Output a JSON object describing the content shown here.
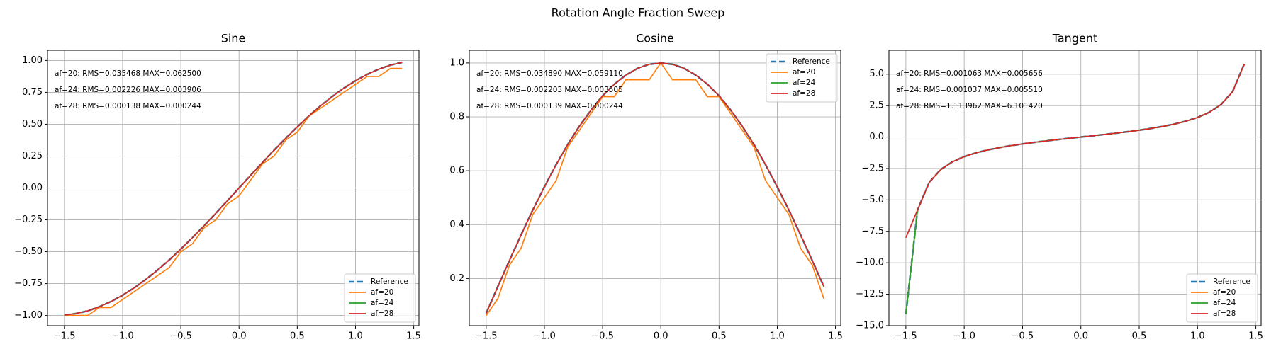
{
  "title": "Rotation Angle Fraction Sweep",
  "chart_data": [
    {
      "type": "line",
      "title": "Sine",
      "grid": true,
      "legend": "lower right",
      "annotations": [
        "af=20: RMS=0.035468 MAX=0.062500",
        "af=24: RMS=0.002226 MAX=0.003906",
        "af=28: RMS=0.000138 MAX=0.000244"
      ],
      "x": [
        -1.5,
        -1.4,
        -1.3,
        -1.2,
        -1.1,
        -1.0,
        -0.9,
        -0.8,
        -0.7,
        -0.6,
        -0.5,
        -0.4,
        -0.3,
        -0.2,
        -0.1,
        0,
        0.1,
        0.2,
        0.3,
        0.4,
        0.5,
        0.6,
        0.7,
        0.8,
        0.9,
        1.0,
        1.1,
        1.2,
        1.3,
        1.4
      ],
      "xlim": [
        -1.645,
        1.545
      ],
      "xticks": [
        {
          "value": -1.5,
          "label": "−1.5"
        },
        {
          "value": -1.0,
          "label": "−1.0"
        },
        {
          "value": -0.5,
          "label": "−0.5"
        },
        {
          "value": 0,
          "label": "0.0"
        },
        0.5,
        {
          "value": 1.0,
          "label": "1.0"
        },
        1.5
      ],
      "ylim": [
        -1.08,
        1.08
      ],
      "yticks": [
        {
          "value": -1.0,
          "label": "−1.00"
        },
        {
          "value": -0.75,
          "label": "−0.75"
        },
        {
          "value": -0.5,
          "label": "−0.50"
        },
        {
          "value": -0.25,
          "label": "−0.25"
        },
        {
          "value": 0,
          "label": "0.00"
        },
        0.25,
        {
          "value": 0.5,
          "label": "0.50"
        },
        0.75,
        {
          "value": 1.0,
          "label": "1.00"
        }
      ],
      "series": [
        {
          "name": "Reference",
          "color": "#1f77b4",
          "linestyle": "dashed",
          "values": [
            -0.997,
            -0.985,
            -0.964,
            -0.932,
            -0.891,
            -0.841,
            -0.783,
            -0.717,
            -0.644,
            -0.565,
            -0.479,
            -0.389,
            -0.296,
            -0.199,
            -0.1,
            0,
            0.1,
            0.199,
            0.296,
            0.389,
            0.479,
            0.565,
            0.644,
            0.717,
            0.783,
            0.841,
            0.891,
            0.932,
            0.964,
            0.985
          ]
        },
        {
          "name": "af=20",
          "color": "#ff7f0e",
          "linestyle": "solid",
          "values": [
            -1,
            -1,
            -1,
            -0.9375,
            -0.9375,
            -0.875,
            -0.8125,
            -0.75,
            -0.6875,
            -0.625,
            -0.5,
            -0.4375,
            -0.3125,
            -0.25,
            -0.125,
            -0.0625,
            0.0625,
            0.1875,
            0.25,
            0.375,
            0.4375,
            0.5625,
            0.625,
            0.6875,
            0.75,
            0.8125,
            0.875,
            0.875,
            0.9375,
            0.9375
          ]
        },
        {
          "name": "af=24",
          "color": "#2ca02c",
          "linestyle": "solid",
          "values": [
            -0.997,
            -0.985,
            -0.964,
            -0.932,
            -0.891,
            -0.841,
            -0.783,
            -0.717,
            -0.644,
            -0.565,
            -0.479,
            -0.389,
            -0.296,
            -0.199,
            -0.1,
            0,
            0.1,
            0.199,
            0.296,
            0.389,
            0.479,
            0.565,
            0.644,
            0.717,
            0.783,
            0.841,
            0.891,
            0.932,
            0.964,
            0.985
          ]
        },
        {
          "name": "af=28",
          "color": "#d62728",
          "linestyle": "solid",
          "values": [
            -0.997,
            -0.985,
            -0.964,
            -0.932,
            -0.891,
            -0.841,
            -0.783,
            -0.717,
            -0.644,
            -0.565,
            -0.479,
            -0.389,
            -0.296,
            -0.199,
            -0.1,
            0,
            0.1,
            0.199,
            0.296,
            0.389,
            0.479,
            0.565,
            0.644,
            0.717,
            0.783,
            0.841,
            0.891,
            0.932,
            0.964,
            0.985
          ]
        }
      ]
    },
    {
      "type": "line",
      "title": "Cosine",
      "grid": true,
      "legend": "upper right",
      "annotations": [
        "af=20: RMS=0.034890 MAX=0.059110",
        "af=24: RMS=0.002203 MAX=0.003505",
        "af=28: RMS=0.000139 MAX=0.000244"
      ],
      "x": [
        -1.5,
        -1.4,
        -1.3,
        -1.2,
        -1.1,
        -1.0,
        -0.9,
        -0.8,
        -0.7,
        -0.6,
        -0.5,
        -0.4,
        -0.3,
        -0.2,
        -0.1,
        0,
        0.1,
        0.2,
        0.3,
        0.4,
        0.5,
        0.6,
        0.7,
        0.8,
        0.9,
        1.0,
        1.1,
        1.2,
        1.3,
        1.4
      ],
      "xlim": [
        -1.645,
        1.545
      ],
      "xticks": [
        {
          "value": -1.5,
          "label": "−1.5"
        },
        {
          "value": -1.0,
          "label": "−1.0"
        },
        {
          "value": -0.5,
          "label": "−0.5"
        },
        {
          "value": 0,
          "label": "0.0"
        },
        0.5,
        {
          "value": 1.0,
          "label": "1.0"
        },
        1.5
      ],
      "ylim": [
        0.025,
        1.047
      ],
      "yticks": [
        0.2,
        0.4,
        0.6,
        0.8,
        {
          "value": 1.0,
          "label": "1.0"
        }
      ],
      "series": [
        {
          "name": "Reference",
          "color": "#1f77b4",
          "linestyle": "dashed",
          "values": [
            0.071,
            0.17,
            0.267,
            0.362,
            0.454,
            0.54,
            0.622,
            0.697,
            0.765,
            0.825,
            0.878,
            0.921,
            0.955,
            0.98,
            0.995,
            1,
            0.995,
            0.98,
            0.955,
            0.921,
            0.878,
            0.825,
            0.765,
            0.697,
            0.622,
            0.54,
            0.454,
            0.362,
            0.267,
            0.17
          ]
        },
        {
          "name": "af=20",
          "color": "#ff7f0e",
          "linestyle": "solid",
          "values": [
            0.0625,
            0.125,
            0.25,
            0.3125,
            0.4375,
            0.5,
            0.5625,
            0.6875,
            0.75,
            0.8125,
            0.875,
            0.875,
            0.9375,
            0.9375,
            0.9375,
            1,
            0.9375,
            0.9375,
            0.9375,
            0.875,
            0.875,
            0.8125,
            0.75,
            0.6875,
            0.5625,
            0.5,
            0.4375,
            0.3125,
            0.25,
            0.125
          ]
        },
        {
          "name": "af=24",
          "color": "#2ca02c",
          "linestyle": "solid",
          "values": [
            0.071,
            0.17,
            0.267,
            0.362,
            0.454,
            0.54,
            0.622,
            0.697,
            0.765,
            0.825,
            0.878,
            0.921,
            0.955,
            0.98,
            0.995,
            1,
            0.995,
            0.98,
            0.955,
            0.921,
            0.878,
            0.825,
            0.765,
            0.697,
            0.622,
            0.54,
            0.454,
            0.362,
            0.267,
            0.17
          ]
        },
        {
          "name": "af=28",
          "color": "#d62728",
          "linestyle": "solid",
          "values": [
            0.071,
            0.17,
            0.267,
            0.362,
            0.454,
            0.54,
            0.622,
            0.697,
            0.765,
            0.825,
            0.878,
            0.921,
            0.955,
            0.98,
            0.995,
            1,
            0.995,
            0.98,
            0.955,
            0.921,
            0.878,
            0.825,
            0.765,
            0.697,
            0.622,
            0.54,
            0.454,
            0.362,
            0.267,
            0.17
          ]
        }
      ]
    },
    {
      "type": "line",
      "title": "Tangent",
      "grid": true,
      "legend": "lower right",
      "annotations": [
        "af=20: RMS=0.001063 MAX=0.005656",
        "af=24: RMS=0.001037 MAX=0.005510",
        "af=28: RMS=1.113962 MAX=6.101420"
      ],
      "x": [
        -1.5,
        -1.4,
        -1.3,
        -1.2,
        -1.1,
        -1.0,
        -0.9,
        -0.8,
        -0.7,
        -0.6,
        -0.5,
        -0.4,
        -0.3,
        -0.2,
        -0.1,
        0,
        0.1,
        0.2,
        0.3,
        0.4,
        0.5,
        0.6,
        0.7,
        0.8,
        0.9,
        1.0,
        1.1,
        1.2,
        1.3,
        1.4
      ],
      "xlim": [
        -1.645,
        1.545
      ],
      "xticks": [
        {
          "value": -1.5,
          "label": "−1.5"
        },
        {
          "value": -1.0,
          "label": "−1.0"
        },
        {
          "value": -0.5,
          "label": "−0.5"
        },
        {
          "value": 0,
          "label": "0.0"
        },
        0.5,
        {
          "value": 1.0,
          "label": "1.0"
        },
        1.5
      ],
      "ylim": [
        -15.0,
        6.9
      ],
      "yticks": [
        {
          "value": -15.0,
          "label": "−15.0"
        },
        {
          "value": -12.5,
          "label": "−12.5"
        },
        {
          "value": -10.0,
          "label": "−10.0"
        },
        {
          "value": -7.5,
          "label": "−7.5"
        },
        {
          "value": -5.0,
          "label": "−5.0"
        },
        {
          "value": -2.5,
          "label": "−2.5"
        },
        {
          "value": 0,
          "label": "0.0"
        },
        2.5,
        {
          "value": 5.0,
          "label": "5.0"
        }
      ],
      "series": [
        {
          "name": "Reference",
          "color": "#1f77b4",
          "linestyle": "dashed",
          "values": [
            -14.101,
            -5.798,
            -3.602,
            -2.572,
            -1.965,
            -1.557,
            -1.26,
            -1.03,
            -0.842,
            -0.684,
            -0.546,
            -0.423,
            -0.309,
            -0.203,
            -0.1,
            0,
            0.1,
            0.203,
            0.309,
            0.423,
            0.546,
            0.684,
            0.842,
            1.03,
            1.26,
            1.557,
            1.965,
            2.572,
            3.602,
            5.798
          ]
        },
        {
          "name": "af=20",
          "color": "#ff7f0e",
          "linestyle": "solid",
          "values": [
            -14.101,
            -5.798,
            -3.602,
            -2.572,
            -1.965,
            -1.557,
            -1.26,
            -1.03,
            -0.842,
            -0.684,
            -0.546,
            -0.423,
            -0.309,
            -0.203,
            -0.1,
            0,
            0.1,
            0.203,
            0.309,
            0.423,
            0.546,
            0.684,
            0.842,
            1.03,
            1.26,
            1.557,
            1.965,
            2.572,
            3.602,
            5.798
          ]
        },
        {
          "name": "af=24",
          "color": "#2ca02c",
          "linestyle": "solid",
          "values": [
            -14.101,
            -5.798,
            -3.602,
            -2.572,
            -1.965,
            -1.557,
            -1.26,
            -1.03,
            -0.842,
            -0.684,
            -0.546,
            -0.423,
            -0.309,
            -0.203,
            -0.1,
            0,
            0.1,
            0.203,
            0.309,
            0.423,
            0.546,
            0.684,
            0.842,
            1.03,
            1.26,
            1.557,
            1.965,
            2.572,
            3.602,
            5.798
          ]
        },
        {
          "name": "af=28",
          "color": "#d62728",
          "linestyle": "solid",
          "values": [
            -8.0,
            -5.798,
            -3.602,
            -2.572,
            -1.965,
            -1.557,
            -1.26,
            -1.03,
            -0.842,
            -0.684,
            -0.546,
            -0.423,
            -0.309,
            -0.203,
            -0.1,
            0,
            0.1,
            0.203,
            0.309,
            0.423,
            0.546,
            0.684,
            0.842,
            1.03,
            1.26,
            1.557,
            1.965,
            2.572,
            3.602,
            5.798
          ]
        }
      ]
    }
  ]
}
